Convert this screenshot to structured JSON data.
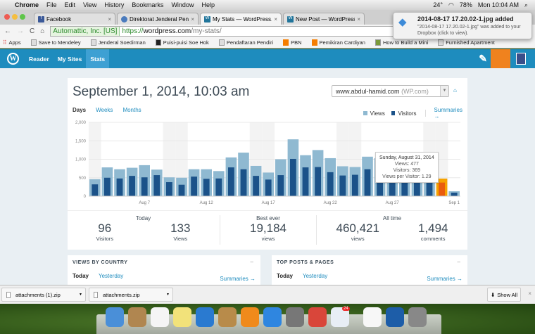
{
  "menubar": {
    "app": "Chrome",
    "items": [
      "File",
      "Edit",
      "View",
      "History",
      "Bookmarks",
      "Window",
      "Help"
    ],
    "weather": "24°",
    "battery": "78%",
    "clock": "Mon 10:04 AM"
  },
  "tabs": [
    {
      "label": "Facebook",
      "icon": "facebook-icon"
    },
    {
      "label": "Direktorat Jenderal Pendidi",
      "icon": "globe-icon"
    },
    {
      "label": "My Stats — WordPress.com",
      "icon": "wordpress-icon",
      "active": true
    },
    {
      "label": "New Post — WordPress.com",
      "icon": "wordpress-icon"
    }
  ],
  "address": {
    "secure_label": "Automattic, Inc. [US]",
    "scheme": "https://",
    "host": "wordpress.com",
    "path": "/my-stats/"
  },
  "bookmarks": [
    {
      "label": "Apps"
    },
    {
      "label": "Save to Mendeley"
    },
    {
      "label": "Jenderal Soedirman"
    },
    {
      "label": "Puisi-puisi Soe Hok"
    },
    {
      "label": "Pendaftaran Pendiri"
    },
    {
      "label": "PBN",
      "orange": true
    },
    {
      "label": "Pemikiran Cardiyan",
      "orange": true
    },
    {
      "label": "How to Build a Mini"
    },
    {
      "label": "Furnished Apartment"
    }
  ],
  "notification": {
    "title": "2014-08-17 17.20.02-1.jpg added",
    "body": "\"2014-08-17 17.20.02-1.jpg\" was added to your Dropbox (click to view)."
  },
  "masthead": {
    "reader": "Reader",
    "mysites": "My Sites",
    "stats": "Stats",
    "accent": "#1e8cbe"
  },
  "stats_page": {
    "title": "September 1, 2014, 10:03 am",
    "site": "www.abdul-hamid.com",
    "site_suffix": "(WP.com)",
    "periods": [
      "Days",
      "Weeks",
      "Months"
    ],
    "legend_views": "Views",
    "legend_visitors": "Visitors",
    "summaries": "Summaries →",
    "tooltip": {
      "date": "Sunday, August 31, 2014",
      "views": "Views: 477",
      "visitors": "Visitors: 369",
      "ratio": "Views per Visitor: 1.29"
    },
    "today": {
      "heading": "Today",
      "visitors": "96",
      "visitors_label": "Visitors",
      "views": "133",
      "views_label": "Views"
    },
    "best": {
      "heading": "Best ever",
      "views": "19,184",
      "label": "views"
    },
    "alltime": {
      "heading": "All time",
      "views": "460,421",
      "views_label": "views",
      "comments": "1,494",
      "comments_label": "comments"
    }
  },
  "chart_data": {
    "type": "bar",
    "ylim": [
      0,
      2000
    ],
    "yticks": [
      "0",
      "500",
      "1,000",
      "1,500",
      "2,000"
    ],
    "categories": [
      "Aug 3",
      "Aug 4",
      "Aug 5",
      "Aug 6",
      "Aug 7",
      "Aug 8",
      "Aug 9",
      "Aug 10",
      "Aug 11",
      "Aug 12",
      "Aug 13",
      "Aug 14",
      "Aug 15",
      "Aug 16",
      "Aug 17",
      "Aug 18",
      "Aug 19",
      "Aug 20",
      "Aug 21",
      "Aug 22",
      "Aug 23",
      "Aug 24",
      "Aug 25",
      "Aug 26",
      "Aug 27",
      "Aug 28",
      "Aug 29",
      "Aug 30",
      "Aug 31",
      "Sep 1"
    ],
    "xtick_labels": {
      "Aug 7": "Aug 7",
      "Aug 12": "Aug 12",
      "Aug 17": "Aug 17",
      "Aug 22": "Aug 22",
      "Aug 27": "Aug 27",
      "Sep 1": "Sep 1"
    },
    "series": [
      {
        "name": "Views",
        "color": "#8fb9d1",
        "values": [
          460,
          780,
          730,
          770,
          840,
          720,
          510,
          500,
          730,
          730,
          680,
          1050,
          1180,
          820,
          640,
          1000,
          1540,
          1110,
          1250,
          1030,
          810,
          790,
          1070,
          1030,
          950,
          880,
          820,
          760,
          477,
          133
        ]
      },
      {
        "name": "Visitors",
        "color": "#1b5289",
        "values": [
          320,
          500,
          480,
          550,
          510,
          570,
          380,
          310,
          530,
          470,
          480,
          780,
          730,
          550,
          450,
          570,
          1010,
          780,
          790,
          650,
          560,
          580,
          730,
          380,
          380,
          380,
          380,
          380,
          369,
          96
        ]
      }
    ],
    "highlight": "Aug 31",
    "highlight_colors": [
      "#f6a200",
      "#ea5b0c"
    ],
    "weekend_shading": true,
    "grid": true
  },
  "modules": [
    {
      "title": "VIEWS BY COUNTRY",
      "today": "Today",
      "yesterday": "Yesterday",
      "summaries": "Summaries →"
    },
    {
      "title": "TOP POSTS & PAGES",
      "today": "Today",
      "yesterday": "Yesterday",
      "summaries": "Summaries →"
    }
  ],
  "downloads": {
    "items": [
      "attachments (1).zip",
      "attachments.zip"
    ],
    "show_all": "Show All"
  },
  "dock": [
    "finder",
    "contacts",
    "calendar",
    "stickies",
    "itunes",
    "trash-recycle",
    "ibooks",
    "app-store",
    "system-preferences",
    "chrome",
    "weather",
    "document",
    "1password",
    "trash"
  ],
  "dock_badge": "24"
}
